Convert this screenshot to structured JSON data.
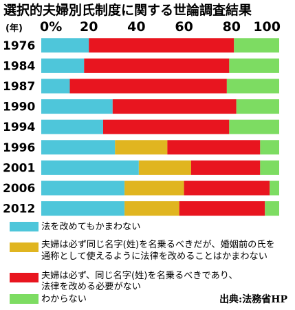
{
  "chart_data": {
    "type": "bar",
    "orientation": "horizontal",
    "stacked": true,
    "title": "選択的夫婦別氏制度に関する世論調査結果",
    "unit_label": "(年)",
    "xlim": [
      0,
      100
    ],
    "x_ticks": [
      "0%",
      "20",
      "40",
      "60",
      "80",
      "100"
    ],
    "categories": [
      "1976",
      "1984",
      "1987",
      "1990",
      "1994",
      "1996",
      "2001",
      "2006",
      "2012"
    ],
    "series": [
      {
        "name": "法を改めてもかまわない",
        "color": "#4ec6da",
        "values": [
          20,
          18,
          12,
          30,
          26,
          31,
          41,
          35,
          35
        ]
      },
      {
        "name": "夫婦は必ず同じ名字(姓)を名乗るべきだが、婚姻前の氏を通称として使えるように法律を改めることはかまわない",
        "color": "#e0b520",
        "values": [
          0,
          0,
          0,
          0,
          0,
          22,
          22,
          25,
          23
        ]
      },
      {
        "name": "夫婦は必ず、同じ名字(姓)を名乗るべきであり、法律を改める必要がない",
        "color": "#e8151f",
        "values": [
          61,
          61,
          66,
          52,
          53,
          39,
          29,
          36,
          36
        ]
      },
      {
        "name": "わからない",
        "color": "#7ddc62",
        "values": [
          19,
          21,
          22,
          18,
          21,
          8,
          8,
          4,
          6
        ]
      }
    ],
    "legend": {
      "placement": "bottom",
      "entries": [
        [
          "法を改めてもかまわない"
        ],
        [
          "夫婦は必ず同じ名字(姓)を名乗るべきだが、婚姻前の氏を",
          "通称として使えるように法律を改めることはかまわない"
        ],
        [
          "夫婦は必ず、同じ名字(姓)を名乗るべきであり、",
          "法律を改める必要がない"
        ],
        [
          "わからない"
        ]
      ]
    },
    "grid": false,
    "source": "出典:法務省HP"
  }
}
